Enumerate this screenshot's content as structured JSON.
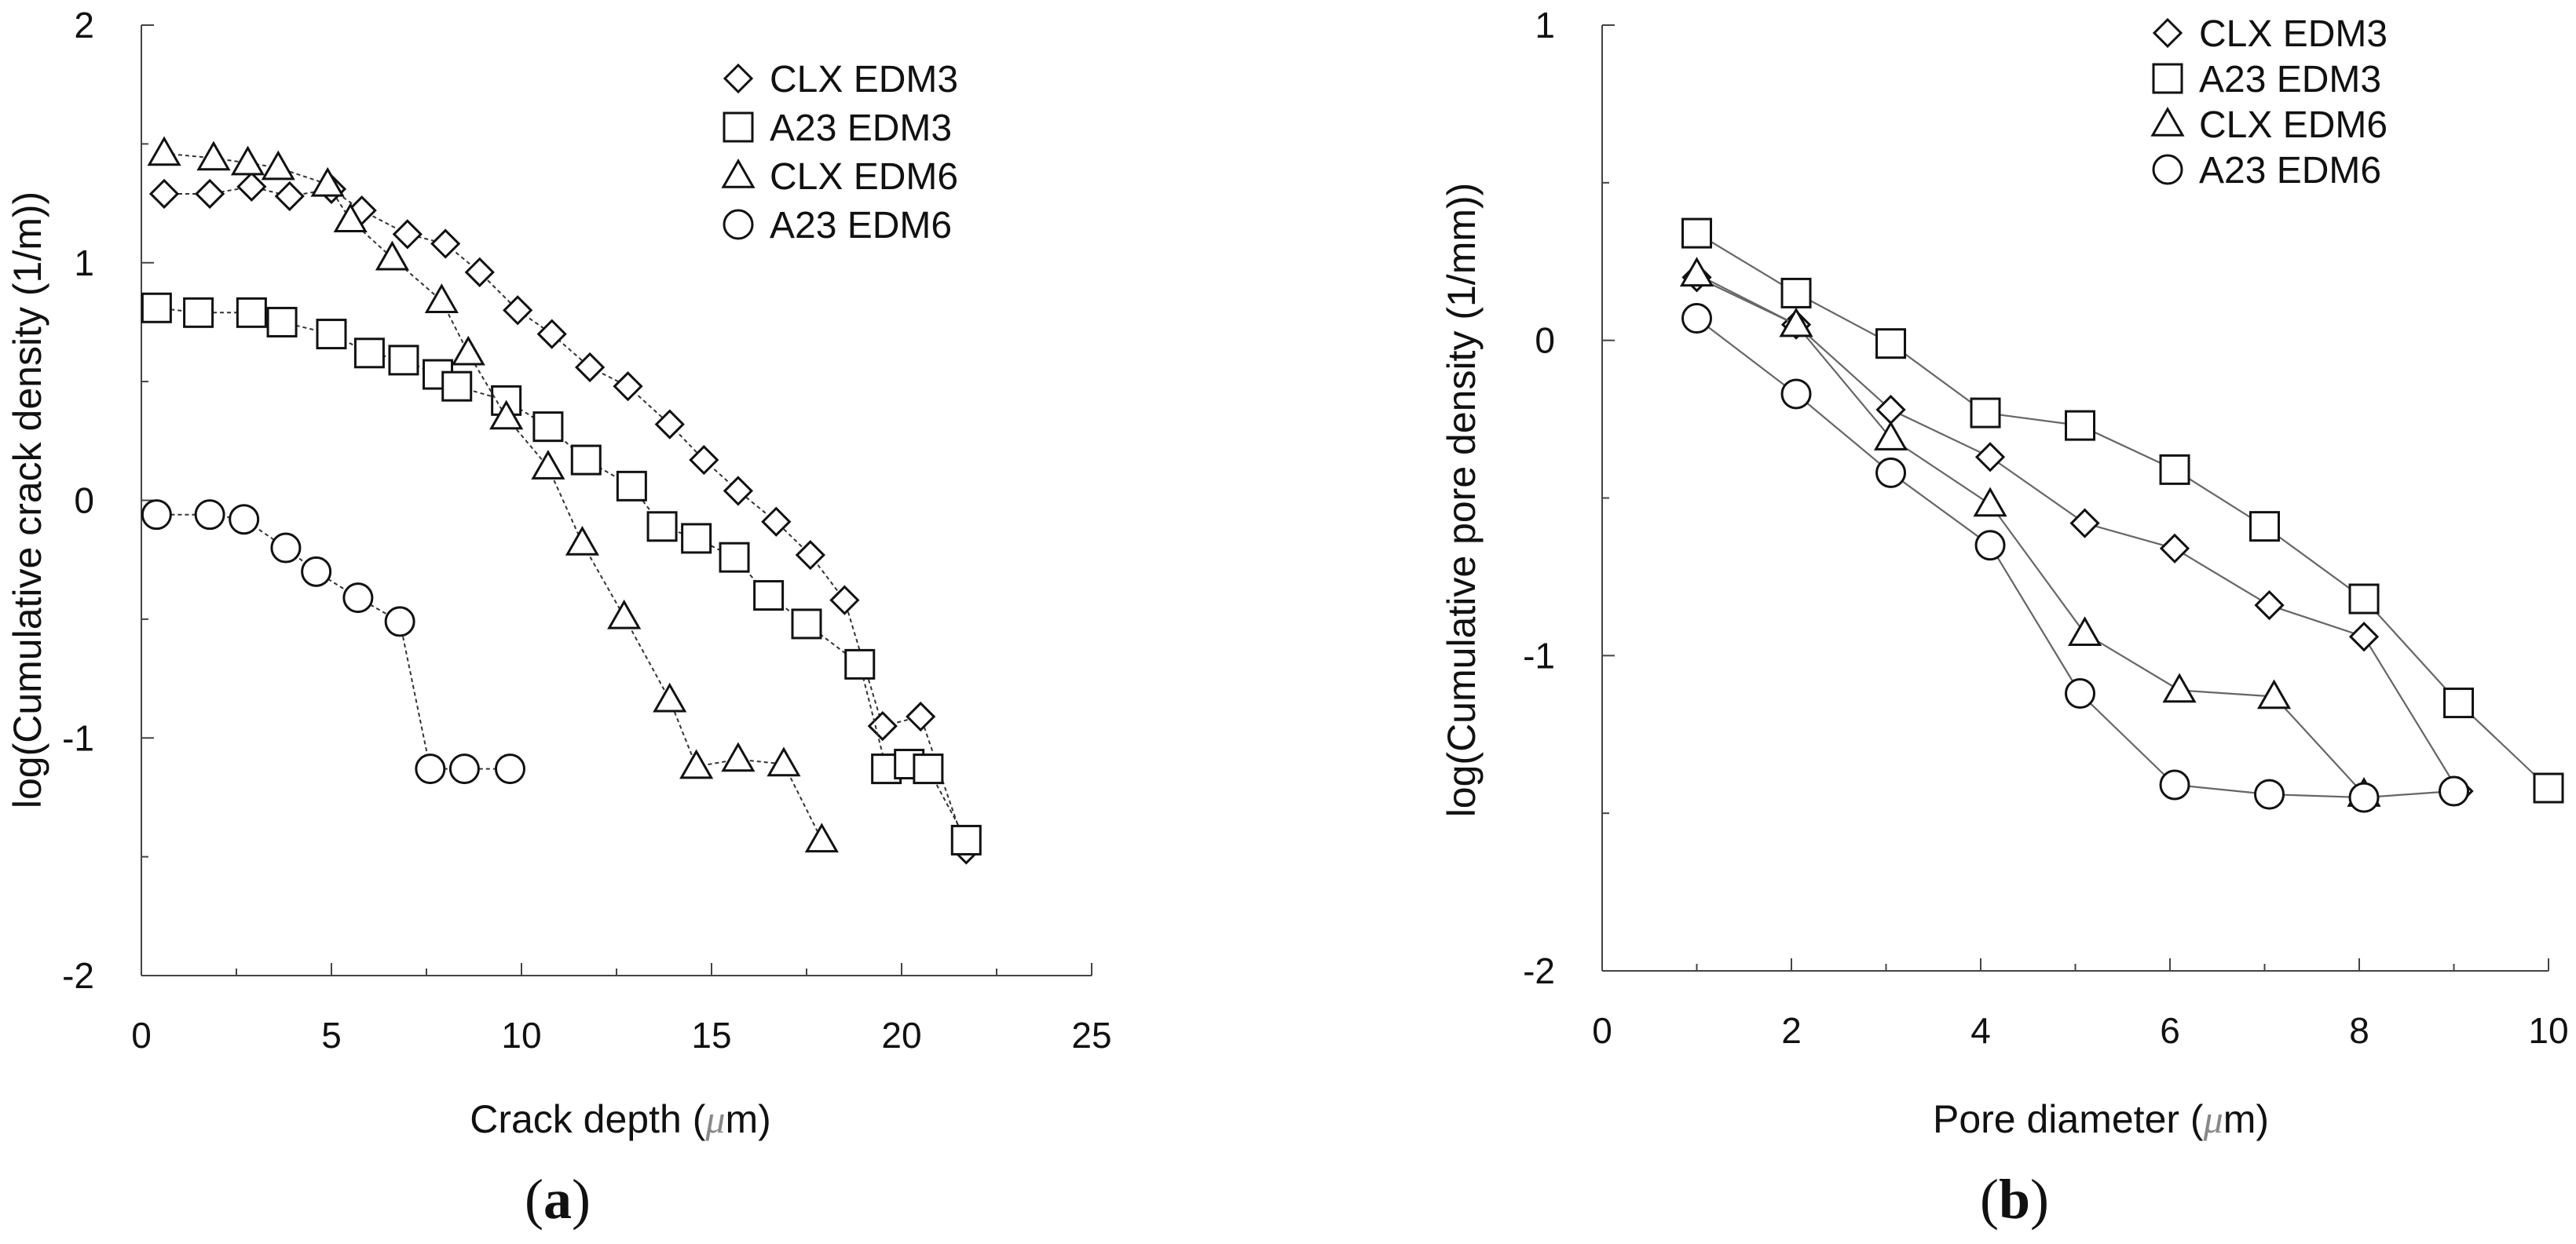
{
  "chart_data": [
    {
      "type": "scatter",
      "xlabel_pre": "Crack depth (",
      "xlabel_unit": "μ",
      "xlabel_post": "m)",
      "ylabel": "log(Cumulative crack density (1/m))",
      "xlim": [
        0,
        25
      ],
      "ylim": [
        -2,
        2
      ],
      "xticks": [
        "0",
        "5",
        "10",
        "15",
        "20",
        "25"
      ],
      "yticks": [
        "2",
        "1",
        "0",
        "-1",
        "-2"
      ],
      "caption_open": "(",
      "caption": "a",
      "caption_close": ")",
      "legend_position": "top-right",
      "series": [
        {
          "name": "CLX EDM3",
          "marker": "diamond",
          "line": "dashed",
          "x": [
            0.6,
            1.8,
            2.9,
            3.9,
            5.0,
            5.8,
            7.0,
            8.0,
            8.9,
            9.9,
            10.8,
            11.8,
            12.8,
            13.9,
            14.8,
            15.7,
            16.7,
            17.6,
            18.5,
            19.5,
            20.5,
            21.7
          ],
          "y": [
            1.29,
            1.29,
            1.32,
            1.28,
            1.31,
            1.22,
            1.12,
            1.08,
            0.96,
            0.8,
            0.7,
            0.56,
            0.48,
            0.32,
            0.17,
            0.04,
            -0.09,
            -0.23,
            -0.42,
            -0.95,
            -0.91,
            -1.47
          ]
        },
        {
          "name": "A23 EDM3",
          "marker": "square",
          "line": "dashed",
          "x": [
            0.4,
            1.5,
            2.9,
            3.7,
            5.0,
            6.0,
            6.9,
            7.8,
            8.3,
            9.6,
            10.7,
            11.7,
            12.9,
            13.7,
            14.6,
            15.6,
            16.5,
            17.5,
            18.9,
            19.6,
            20.2,
            20.7,
            21.7
          ],
          "y": [
            0.81,
            0.79,
            0.79,
            0.75,
            0.7,
            0.62,
            0.59,
            0.53,
            0.48,
            0.42,
            0.31,
            0.17,
            0.06,
            -0.11,
            -0.16,
            -0.24,
            -0.4,
            -0.52,
            -0.69,
            -1.13,
            -1.11,
            -1.13,
            -1.43
          ]
        },
        {
          "name": "CLX EDM6",
          "marker": "triangle",
          "line": "dashed",
          "x": [
            0.6,
            1.9,
            2.8,
            3.6,
            4.9,
            5.5,
            6.6,
            7.9,
            8.6,
            9.6,
            10.7,
            11.6,
            12.7,
            13.9,
            14.6,
            15.7,
            16.9,
            17.9
          ],
          "y": [
            1.46,
            1.44,
            1.42,
            1.4,
            1.33,
            1.18,
            1.02,
            0.84,
            0.62,
            0.35,
            0.14,
            -0.18,
            -0.49,
            -0.84,
            -1.12,
            -1.09,
            -1.11,
            -1.43
          ]
        },
        {
          "name": "A23 EDM6",
          "marker": "circle",
          "line": "dashed",
          "x": [
            0.4,
            1.8,
            2.7,
            3.8,
            4.6,
            5.7,
            6.8,
            7.6,
            8.5,
            9.7
          ],
          "y": [
            -0.06,
            -0.06,
            -0.08,
            -0.2,
            -0.3,
            -0.41,
            -0.51,
            -1.13,
            -1.13,
            -1.13
          ]
        }
      ]
    },
    {
      "type": "scatter",
      "xlabel_pre": "Pore diameter (",
      "xlabel_unit": "μ",
      "xlabel_post": "m)",
      "ylabel": "log(Cumulative pore density (1/mm))",
      "xlim": [
        0,
        10
      ],
      "ylim": [
        -2,
        1
      ],
      "xticks": [
        "0",
        "2",
        "4",
        "6",
        "8",
        "10"
      ],
      "yticks": [
        "1",
        "0",
        "-1",
        "-2"
      ],
      "caption_open": "(",
      "caption": "b",
      "caption_close": ")",
      "legend_position": "top-right",
      "series": [
        {
          "name": "CLX EDM3",
          "marker": "diamond",
          "line": "solid",
          "x": [
            1.0,
            2.05,
            3.05,
            4.1,
            5.1,
            6.05,
            7.05,
            8.05,
            9.05
          ],
          "y": [
            0.2,
            0.05,
            -0.22,
            -0.37,
            -0.58,
            -0.66,
            -0.84,
            -0.94,
            -1.43
          ]
        },
        {
          "name": "A23 EDM3",
          "marker": "square",
          "line": "solid",
          "x": [
            1.0,
            2.05,
            3.05,
            4.05,
            5.05,
            6.05,
            7.0,
            8.05,
            9.05,
            10.0
          ],
          "y": [
            0.34,
            0.15,
            -0.01,
            -0.23,
            -0.27,
            -0.41,
            -0.59,
            -0.82,
            -1.15,
            -1.42
          ]
        },
        {
          "name": "CLX EDM6",
          "marker": "triangle",
          "line": "solid",
          "x": [
            1.0,
            2.05,
            3.05,
            4.1,
            5.1,
            6.1,
            7.1,
            8.05
          ],
          "y": [
            0.21,
            0.05,
            -0.31,
            -0.52,
            -0.93,
            -1.11,
            -1.13,
            -1.44
          ]
        },
        {
          "name": "A23 EDM6",
          "marker": "circle",
          "line": "solid",
          "x": [
            1.0,
            2.05,
            3.05,
            4.1,
            5.05,
            6.05,
            7.05,
            8.05,
            9.0
          ],
          "y": [
            0.07,
            -0.17,
            -0.42,
            -0.65,
            -1.12,
            -1.41,
            -1.44,
            -1.45,
            -1.43
          ]
        }
      ]
    }
  ]
}
